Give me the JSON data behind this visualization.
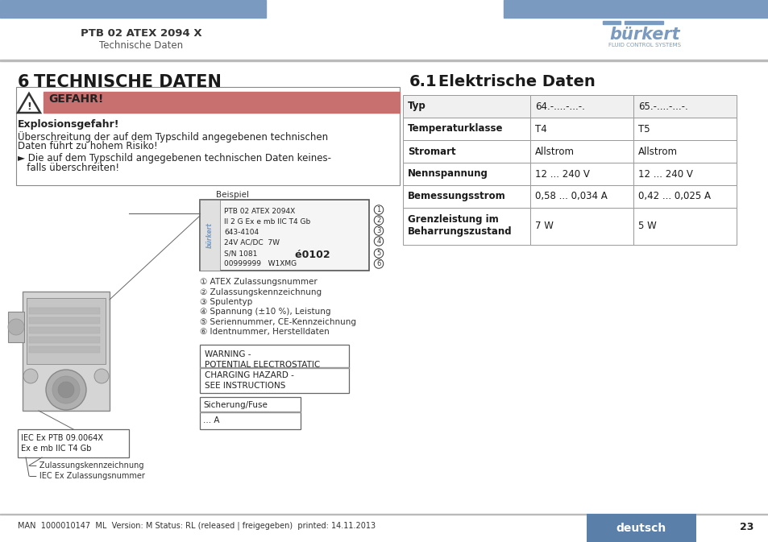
{
  "page_bg": "#ffffff",
  "header_bar_color": "#7a9bbf",
  "header_title": "PTB 02 ATEX 2094 X",
  "header_subtitle": "Technische Daten",
  "section6_number": "6",
  "section6_title": "TECHNISCHE DATEN",
  "gefahr_label": "GEFAHR!",
  "gefahr_bg": "#c87070",
  "explosionsgefahr_label": "Explosionsgefahr!",
  "danger_text1": "Überschreitung der auf dem Typschild angegebenen technischen",
  "danger_text2": "Daten führt zu hohem Risiko!",
  "danger_bullet1": "► Die auf dem Typschild angegebenen technischen Daten keines-",
  "danger_bullet2": "   falls überschreiten!",
  "beispiel_label": "Beispiel",
  "typschild_lines": [
    "PTB 02 ATEX 2094X",
    "II 2 G Ex e mb IIC T4 Gb",
    "643-4104",
    "24V AC/DC  7W",
    "S/N 1081    é0102",
    "00999999   W1XMG"
  ],
  "legend_items": [
    "① ATEX Zulassungsnummer",
    "② Zulassungskennzeichnung",
    "③ Spulentyp",
    "④ Spannung (±10 %), Leistung",
    "⑤ Seriennummer, CE-Kennzeichnung",
    "⑥ Identnummer, Herstelldaten"
  ],
  "warning_box_lines": [
    "WARNING -",
    "POTENTIAL ELECTROSTATIC",
    "CHARGING HAZARD -",
    "SEE INSTRUCTIONS"
  ],
  "fuse_label": "Sicherung/Fuse",
  "fuse_value": "... A",
  "iec_box_lines": [
    "IEC Ex PTB 09.0064X",
    "Ex e mb IIC T4 Gb"
  ],
  "iec_label1": "— Zulassungskennzeichnung",
  "iec_label2": "— IEC Ex Zulassungsnummer",
  "section61_number": "6.1",
  "section61_title": "Elektrische Daten",
  "table_headers": [
    "Typ",
    "64.-....-...-.",
    "65.-....-...-."
  ],
  "table_rows": [
    [
      "Temperaturklasse",
      "T4",
      "T5"
    ],
    [
      "Stromart",
      "Allstrom",
      "Allstrom"
    ],
    [
      "Nennspannung",
      "12 ... 240 V",
      "12 ... 240 V"
    ],
    [
      "Bemessungsstrom",
      "0,58 ... 0,034 A",
      "0,42 ... 0,025 A"
    ],
    [
      "Grenzleistung im\nBeharrungszustand",
      "7 W",
      "5 W"
    ]
  ],
  "footer_text": "MAN  1000010147  ML  Version: M Status: RL (released | freigegeben)  printed: 14.11.2013",
  "footer_deutsch_bg": "#5a7fa8",
  "footer_deutsch_text": "deutsch",
  "page_number": "23",
  "burkert_color": "#7a9bbf"
}
